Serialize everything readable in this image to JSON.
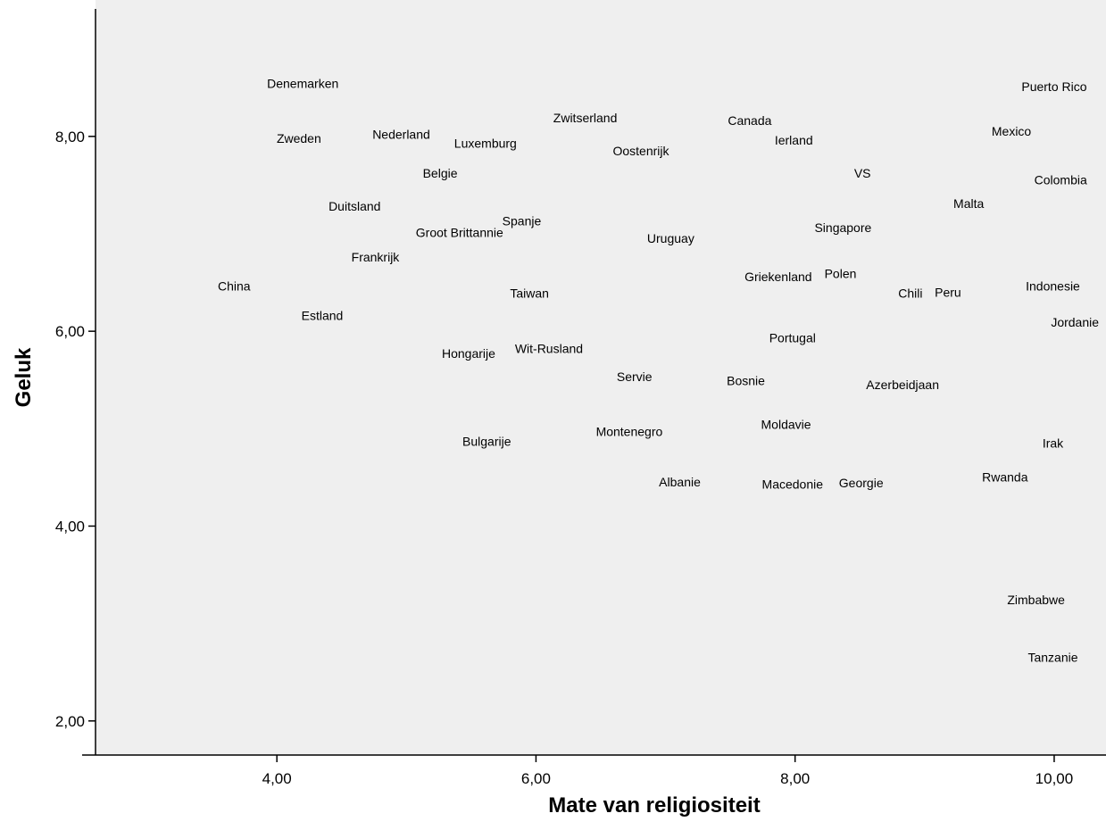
{
  "chart_data": {
    "type": "scatter",
    "title": "",
    "xlabel": "Mate van religiositeit",
    "ylabel": "Geluk",
    "xlim": [
      2.6,
      10.4
    ],
    "ylim": [
      1.65,
      9.4
    ],
    "x_ticks": [
      4,
      6,
      8,
      10
    ],
    "y_ticks": [
      2,
      4,
      6,
      8
    ],
    "x_tick_labels": [
      "4,00",
      "6,00",
      "8,00",
      "10,00"
    ],
    "y_tick_labels": [
      "2,00",
      "4,00",
      "6,00",
      "8,00"
    ],
    "grid": false,
    "legend": "none",
    "background": "#efefef",
    "marker": "label",
    "points": [
      {
        "label": "Denemarken",
        "x": 4.2,
        "y": 8.53
      },
      {
        "label": "Zweden",
        "x": 4.17,
        "y": 7.97
      },
      {
        "label": "Nederland",
        "x": 4.96,
        "y": 8.01
      },
      {
        "label": "Luxemburg",
        "x": 5.61,
        "y": 7.92
      },
      {
        "label": "Zwitserland",
        "x": 6.38,
        "y": 8.18
      },
      {
        "label": "Canada",
        "x": 7.65,
        "y": 8.15
      },
      {
        "label": "Ierland",
        "x": 7.99,
        "y": 7.95
      },
      {
        "label": "Puerto Rico",
        "x": 10.0,
        "y": 8.5
      },
      {
        "label": "Mexico",
        "x": 9.67,
        "y": 8.04
      },
      {
        "label": "Oostenrijk",
        "x": 6.81,
        "y": 7.84
      },
      {
        "label": "Belgie",
        "x": 5.26,
        "y": 7.61
      },
      {
        "label": "VS",
        "x": 8.52,
        "y": 7.61
      },
      {
        "label": "Colombia",
        "x": 10.05,
        "y": 7.54
      },
      {
        "label": "Malta",
        "x": 9.34,
        "y": 7.3
      },
      {
        "label": "Duitsland",
        "x": 4.6,
        "y": 7.27
      },
      {
        "label": "Spanje",
        "x": 5.89,
        "y": 7.12
      },
      {
        "label": "Groot Brittannie",
        "x": 5.41,
        "y": 7.0
      },
      {
        "label": "Singapore",
        "x": 8.37,
        "y": 7.05
      },
      {
        "label": "Uruguay",
        "x": 7.04,
        "y": 6.94
      },
      {
        "label": "Frankrijk",
        "x": 4.76,
        "y": 6.75
      },
      {
        "label": "Griekenland",
        "x": 7.87,
        "y": 6.55
      },
      {
        "label": "Polen",
        "x": 8.35,
        "y": 6.58
      },
      {
        "label": "China",
        "x": 3.67,
        "y": 6.45
      },
      {
        "label": "Taiwan",
        "x": 5.95,
        "y": 6.38
      },
      {
        "label": "Chili",
        "x": 8.89,
        "y": 6.38
      },
      {
        "label": "Peru",
        "x": 9.18,
        "y": 6.39
      },
      {
        "label": "Indonesie",
        "x": 9.99,
        "y": 6.45
      },
      {
        "label": "Estland",
        "x": 4.35,
        "y": 6.15
      },
      {
        "label": "Jordanie",
        "x": 10.16,
        "y": 6.08
      },
      {
        "label": "Portugal",
        "x": 7.98,
        "y": 5.92
      },
      {
        "label": "Hongarije",
        "x": 5.48,
        "y": 5.76
      },
      {
        "label": "Wit-Rusland",
        "x": 6.1,
        "y": 5.81
      },
      {
        "label": "Servie",
        "x": 6.76,
        "y": 5.52
      },
      {
        "label": "Bosnie",
        "x": 7.62,
        "y": 5.48
      },
      {
        "label": "Azerbeidjaan",
        "x": 8.83,
        "y": 5.44
      },
      {
        "label": "Moldavie",
        "x": 7.93,
        "y": 5.03
      },
      {
        "label": "Montenegro",
        "x": 6.72,
        "y": 4.96
      },
      {
        "label": "Bulgarije",
        "x": 5.62,
        "y": 4.86
      },
      {
        "label": "Irak",
        "x": 9.99,
        "y": 4.84
      },
      {
        "label": "Albanie",
        "x": 7.11,
        "y": 4.44
      },
      {
        "label": "Macedonie",
        "x": 7.98,
        "y": 4.42
      },
      {
        "label": "Georgie",
        "x": 8.51,
        "y": 4.43
      },
      {
        "label": "Rwanda",
        "x": 9.62,
        "y": 4.49
      },
      {
        "label": "Zimbabwe",
        "x": 9.86,
        "y": 3.23
      },
      {
        "label": "Tanzanie",
        "x": 9.99,
        "y": 2.64
      }
    ]
  }
}
